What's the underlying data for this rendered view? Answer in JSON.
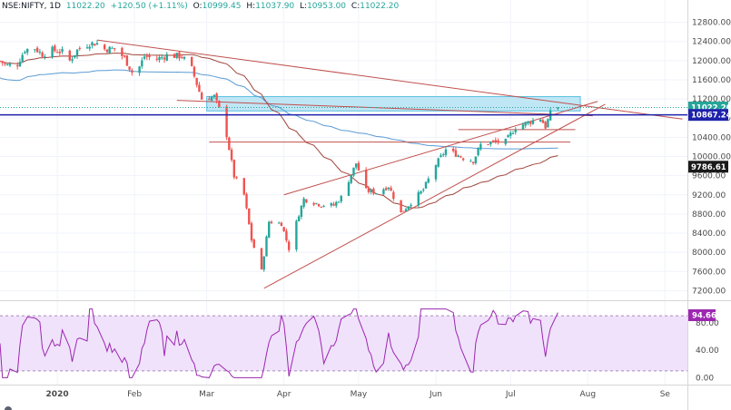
{
  "header": {
    "symbol": "NSE:NIFTY, 1D",
    "change": "+120.50 (+1.11%)",
    "ohlc": [
      {
        "label": "O:",
        "value": "10999.45"
      },
      {
        "label": "H:",
        "value": "11037.90"
      },
      {
        "label": "L:",
        "value": "10953.00"
      },
      {
        "label": "C:",
        "value": "11022.20"
      }
    ],
    "last": "11022.20"
  },
  "chart_data": {
    "type": "candlestick",
    "price_axis": {
      "ticks": [
        "12800.00",
        "12400.00",
        "12000.00",
        "11600.00",
        "11200.00",
        "10800.00",
        "10400.00",
        "10000.00",
        "9600.00",
        "9200.00",
        "8800.00",
        "8400.00",
        "8000.00",
        "7600.00",
        "7200.00"
      ],
      "ylim": [
        7000,
        13000
      ]
    },
    "time_axis": {
      "ticks": [
        {
          "label": "2020",
          "date": "2020-01-01",
          "bold": true
        },
        {
          "label": "Feb",
          "date": "2020-02-01"
        },
        {
          "label": "Mar",
          "date": "2020-03-01"
        },
        {
          "label": "Apr",
          "date": "2020-04-01"
        },
        {
          "label": "May",
          "date": "2020-05-01"
        },
        {
          "label": "Jun",
          "date": "2020-06-01"
        },
        {
          "label": "Jul",
          "date": "2020-07-01"
        },
        {
          "label": "Aug",
          "date": "2020-08-01"
        },
        {
          "label": "Se",
          "date": "2020-09-01"
        }
      ],
      "xlim": [
        "2019-12-09",
        "2020-09-10"
      ]
    },
    "price_tags": [
      {
        "value": 11022.2,
        "label": "11022.20",
        "color": "#26a69a"
      },
      {
        "value": 10867.24,
        "label": "10867.24",
        "color": "#1e22aa"
      },
      {
        "value": 9786.61,
        "label": "9786.61",
        "color": "#1a1a1a"
      }
    ],
    "colors": {
      "up": "#26a69a",
      "down": "#ef5350",
      "ma_long": "#5b9bd5",
      "ma_short": "#a0453b",
      "trend": "#c0504d",
      "zone": "#bfe6f5",
      "rsi": "#9c27b0",
      "rsi_band": "#f0e2fb"
    },
    "rsi": {
      "ticks": [
        "80.00",
        "40.00",
        "0.00"
      ],
      "ylim": [
        -10,
        110
      ],
      "bounds": [
        90,
        10
      ],
      "last": "94.66",
      "value": 94.66
    },
    "anchors": [
      {
        "d": "2019-12-09",
        "c": 11990
      },
      {
        "d": "2019-12-12",
        "c": 11900
      },
      {
        "d": "2019-12-16",
        "c": 11930
      },
      {
        "d": "2019-12-19",
        "c": 12230
      },
      {
        "d": "2019-12-23",
        "c": 12260
      },
      {
        "d": "2019-12-26",
        "c": 12130
      },
      {
        "d": "2019-12-30",
        "c": 12220
      },
      {
        "d": "2020-01-03",
        "c": 12180
      },
      {
        "d": "2020-01-06",
        "c": 12000
      },
      {
        "d": "2020-01-09",
        "c": 12220
      },
      {
        "d": "2020-01-14",
        "c": 12360
      },
      {
        "d": "2020-01-17",
        "c": 12360
      },
      {
        "d": "2020-01-20",
        "c": 12240
      },
      {
        "d": "2020-01-24",
        "c": 12250
      },
      {
        "d": "2020-01-28",
        "c": 12050
      },
      {
        "d": "2020-02-01",
        "c": 11660
      },
      {
        "d": "2020-02-05",
        "c": 12090
      },
      {
        "d": "2020-02-10",
        "c": 12030
      },
      {
        "d": "2020-02-14",
        "c": 12110
      },
      {
        "d": "2020-02-20",
        "c": 12090
      },
      {
        "d": "2020-02-24",
        "c": 11830
      },
      {
        "d": "2020-02-28",
        "c": 11200
      },
      {
        "d": "2020-03-04",
        "c": 11250
      },
      {
        "d": "2020-03-06",
        "c": 10990
      },
      {
        "d": "2020-03-09",
        "c": 10450
      },
      {
        "d": "2020-03-12",
        "c": 9590
      },
      {
        "d": "2020-03-16",
        "c": 9200
      },
      {
        "d": "2020-03-19",
        "c": 8260
      },
      {
        "d": "2020-03-23",
        "c": 7610
      },
      {
        "d": "2020-03-26",
        "c": 8640
      },
      {
        "d": "2020-03-31",
        "c": 8600
      },
      {
        "d": "2020-04-03",
        "c": 8080
      },
      {
        "d": "2020-04-07",
        "c": 8800
      },
      {
        "d": "2020-04-09",
        "c": 9110
      },
      {
        "d": "2020-04-16",
        "c": 8990
      },
      {
        "d": "2020-04-21",
        "c": 8980
      },
      {
        "d": "2020-04-24",
        "c": 9150
      },
      {
        "d": "2020-04-30",
        "c": 9860
      },
      {
        "d": "2020-05-04",
        "c": 9290
      },
      {
        "d": "2020-05-08",
        "c": 9250
      },
      {
        "d": "2020-05-13",
        "c": 9380
      },
      {
        "d": "2020-05-18",
        "c": 8820
      },
      {
        "d": "2020-05-22",
        "c": 9040
      },
      {
        "d": "2020-05-27",
        "c": 9310
      },
      {
        "d": "2020-06-01",
        "c": 9830
      },
      {
        "d": "2020-06-05",
        "c": 10140
      },
      {
        "d": "2020-06-09",
        "c": 10050
      },
      {
        "d": "2020-06-12",
        "c": 9970
      },
      {
        "d": "2020-06-16",
        "c": 9910
      },
      {
        "d": "2020-06-19",
        "c": 10240
      },
      {
        "d": "2020-06-24",
        "c": 10300
      },
      {
        "d": "2020-06-29",
        "c": 10310
      },
      {
        "d": "2020-07-03",
        "c": 10610
      },
      {
        "d": "2020-07-08",
        "c": 10710
      },
      {
        "d": "2020-07-13",
        "c": 10800
      },
      {
        "d": "2020-07-15",
        "c": 10620
      },
      {
        "d": "2020-07-17",
        "c": 10900
      },
      {
        "d": "2020-07-20",
        "c": 11022
      }
    ],
    "trend_lines": [
      {
        "from": {
          "d": "2020-01-17",
          "v": 12430
        },
        "to": {
          "d": "2020-09-08",
          "v": 10780
        }
      },
      {
        "from": {
          "d": "2020-03-24",
          "v": 7250
        },
        "to": {
          "d": "2020-08-08",
          "v": 11090
        }
      },
      {
        "from": {
          "d": "2020-04-01",
          "v": 9200
        },
        "to": {
          "d": "2020-08-05",
          "v": 11150
        }
      },
      {
        "from": {
          "d": "2020-02-18",
          "v": 11170
        },
        "to": {
          "d": "2020-08-03",
          "v": 10850
        }
      },
      {
        "from": {
          "d": "2020-03-02",
          "v": 10300
        },
        "to": {
          "d": "2020-07-25",
          "v": 10300
        }
      },
      {
        "from": {
          "d": "2020-06-10",
          "v": 10560
        },
        "to": {
          "d": "2020-07-27",
          "v": 10560
        }
      }
    ],
    "zone": {
      "from": "2020-03-01",
      "to": "2020-07-29",
      "top": 11250,
      "bottom": 10950
    }
  }
}
